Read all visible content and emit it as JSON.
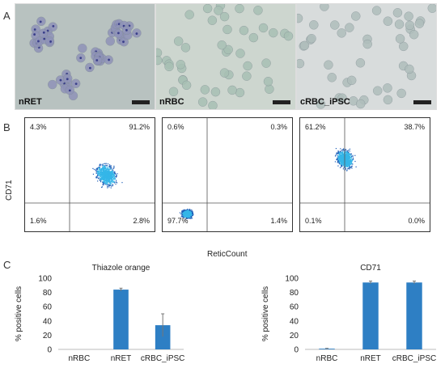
{
  "panel_a": {
    "letter": "A",
    "images": [
      {
        "label": "nRET",
        "bg": "#b8c2c0",
        "cell": "#8f93b8",
        "dot": "#3a3f8a"
      },
      {
        "label": "nRBC",
        "bg": "#cdd6cf",
        "cell": "#a8c0b4",
        "dot": "#a8c0b4"
      },
      {
        "label": "cRBC_iPSC",
        "bg": "#d8dcdc",
        "cell": "#b0bebc",
        "dot": "#8a92a8"
      }
    ]
  },
  "panel_b": {
    "letter": "B",
    "ylabel": "CD71",
    "xlabel": "ReticCount",
    "plots": [
      {
        "tl": "4.3%",
        "tr": "91.2%",
        "bl": "1.6%",
        "br": "2.8%"
      },
      {
        "tl": "0.6%",
        "tr": "0.3%",
        "bl": "97.7%",
        "br": "1.4%"
      },
      {
        "tl": "61.2%",
        "tr": "38.7%",
        "bl": "0.1%",
        "br": "0.0%"
      }
    ]
  },
  "panel_c": {
    "letter": "C"
  },
  "chart_data": [
    {
      "type": "bar",
      "title": "Thiazole orange",
      "ylabel": "% positive cells",
      "categories": [
        "nRBC",
        "nRET",
        "cRBC_iPSC"
      ],
      "values": [
        0,
        84,
        34
      ],
      "errors": [
        0,
        2,
        16
      ],
      "ylim": [
        0,
        100
      ],
      "yticks": [
        0,
        20,
        40,
        60,
        80,
        100
      ],
      "color": "#2e7fc4"
    },
    {
      "type": "bar",
      "title": "CD71",
      "ylabel": "% positive cells",
      "categories": [
        "nRBC",
        "nRET",
        "cRBC_iPSC"
      ],
      "values": [
        1,
        94,
        94
      ],
      "errors": [
        0.5,
        2,
        2
      ],
      "ylim": [
        0,
        100
      ],
      "yticks": [
        0,
        20,
        40,
        60,
        80,
        100
      ],
      "color": "#2e7fc4"
    }
  ]
}
